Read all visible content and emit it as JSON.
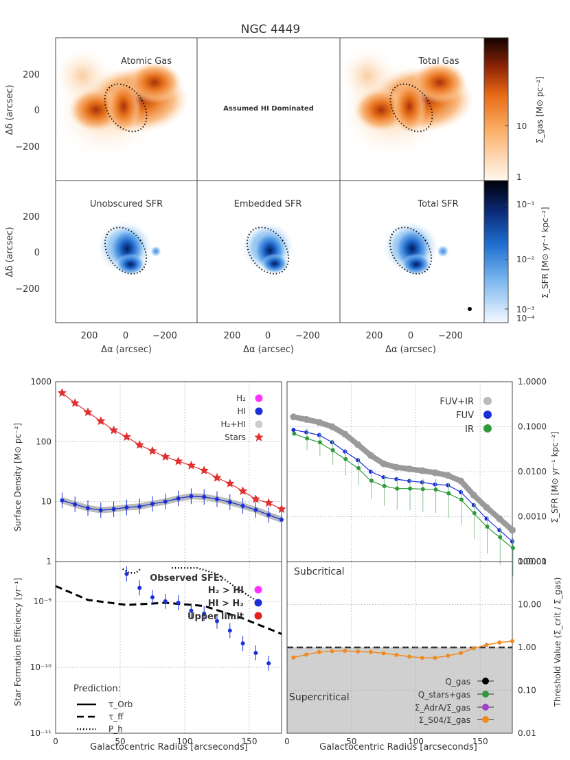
{
  "chart_data": [
    {
      "type": "heatmap",
      "title": "NGC 4449",
      "panels": [
        {
          "label": "Atomic Gas",
          "row": "gas",
          "col": 0
        },
        {
          "label": "Assumed HI Dominated",
          "row": "gas",
          "col": 1
        },
        {
          "label": "Total Gas",
          "row": "gas",
          "col": 2
        },
        {
          "label": "Unobscured SFR",
          "row": "sfr",
          "col": 0
        },
        {
          "label": "Embedded SFR",
          "row": "sfr",
          "col": 1
        },
        {
          "label": "Total SFR",
          "row": "sfr",
          "col": 2
        }
      ],
      "xlabel": "Δα (arcsec)",
      "ylabel": "Δδ (arcsec)",
      "xticks": [
        "200",
        "0",
        "−200"
      ],
      "yticks": [
        "200",
        "0",
        "−200"
      ],
      "gas_colorbar": {
        "label": "Σ_gas [M⊙ pc⁻²]",
        "ticks": [
          "10",
          "1"
        ],
        "range": [
          1,
          60
        ]
      },
      "sfr_colorbar": {
        "label": "Σ_SFR [M⊙ yr⁻¹ kpc⁻²]",
        "ticks": [
          "10⁻¹",
          "10⁻²",
          "10⁻³",
          "10⁻⁴"
        ],
        "range": [
          0.0001,
          0.3
        ]
      },
      "colors": {
        "gas_low": "#fff6ec",
        "gas_mid": "#f58a2e",
        "gas_high": "#3a0b02",
        "sfr_low": "#f2f8ff",
        "sfr_mid": "#2f80d8",
        "sfr_high": "#020620"
      }
    },
    {
      "type": "line",
      "panel": "surface-density",
      "xlabel": "",
      "ylabel": "Surface Density [M⊙ pc⁻²]",
      "xlim": [
        0,
        175
      ],
      "ylim": [
        1,
        1000
      ],
      "yscale": "log",
      "yticks": [
        "1",
        "10",
        "100",
        "1000"
      ],
      "legend": [
        "H₂",
        "HI",
        "H₂+HI",
        "Stars"
      ],
      "legend_colors": [
        "#ff33ff",
        "#1a2fd8",
        "#cccccc",
        "#e03030"
      ],
      "x": [
        5,
        15,
        25,
        35,
        45,
        55,
        65,
        75,
        85,
        95,
        105,
        115,
        125,
        135,
        145,
        155,
        165,
        175
      ],
      "series": [
        {
          "name": "Stars",
          "color": "#e03030",
          "values": [
            650,
            440,
            310,
            220,
            155,
            120,
            88,
            70,
            56,
            47,
            40,
            33,
            25,
            20,
            15,
            11,
            9.5,
            7.5
          ]
        },
        {
          "name": "HI",
          "color": "#1a2fd8",
          "values": [
            10.5,
            9,
            7.8,
            7.2,
            7.5,
            8,
            8.3,
            9.2,
            10,
            11.3,
            12.3,
            12,
            11,
            9.8,
            8.5,
            7.3,
            6,
            5
          ]
        }
      ]
    },
    {
      "type": "line",
      "panel": "sfr-density",
      "ylabel": "Σ_SFR [M⊙ yr⁻¹ kpc⁻²]",
      "xlim": [
        0,
        175
      ],
      "ylim": [
        0.0001,
        1.0
      ],
      "yscale": "log",
      "yticks": [
        "0.0001",
        "0.0010",
        "0.0100",
        "0.1000",
        "1.0000"
      ],
      "legend": [
        "FUV+IR",
        "FUV",
        "IR"
      ],
      "legend_colors": [
        "#bbbbbb",
        "#1a2fd8",
        "#2e9a3a"
      ],
      "x": [
        5,
        15,
        25,
        35,
        45,
        55,
        65,
        75,
        85,
        95,
        105,
        115,
        125,
        135,
        145,
        155,
        165,
        175
      ],
      "series": [
        {
          "name": "FUV+IR",
          "color": "#999999",
          "values": [
            0.165,
            0.145,
            0.125,
            0.1,
            0.068,
            0.04,
            0.023,
            0.015,
            0.0125,
            0.0115,
            0.0105,
            0.0095,
            0.0082,
            0.0062,
            0.003,
            0.0016,
            0.0009,
            0.0005
          ]
        },
        {
          "name": "FUV",
          "color": "#1a2fd8",
          "values": [
            0.085,
            0.075,
            0.065,
            0.045,
            0.028,
            0.018,
            0.01,
            0.0075,
            0.0068,
            0.0062,
            0.0058,
            0.0052,
            0.005,
            0.0035,
            0.0018,
            0.0009,
            0.0005,
            0.00028
          ]
        },
        {
          "name": "IR",
          "color": "#2e9a3a",
          "values": [
            0.07,
            0.055,
            0.045,
            0.03,
            0.019,
            0.012,
            0.0063,
            0.0048,
            0.0042,
            0.0042,
            0.0041,
            0.004,
            0.0033,
            0.0024,
            0.0012,
            0.0006,
            0.00035,
            0.0002
          ]
        }
      ]
    },
    {
      "type": "scatter",
      "panel": "star-formation-efficiency",
      "xlabel": "Galactocentric Radius [arcseconds]",
      "ylabel": "Star Formation Efficiency [yr⁻¹]",
      "xlim": [
        0,
        175
      ],
      "ylim": [
        1e-11,
        4e-09
      ],
      "yscale": "log",
      "yticks": [
        "10⁻¹¹",
        "10⁻¹⁰",
        "10⁻⁹"
      ],
      "xticks": [
        "0",
        "50",
        "100",
        "150"
      ],
      "legend_title": "Observed SFE:",
      "legend": [
        "H₂ > HI",
        "HI > H₂",
        "Upper limit"
      ],
      "legend_colors": [
        "#ff33ff",
        "#1a2fd8",
        "#e02020"
      ],
      "prediction_title": "Prediction:",
      "prediction_labels": [
        "τ_Orb",
        "τ_ff",
        "P_h"
      ],
      "x": [
        55,
        65,
        75,
        85,
        95,
        105,
        115,
        125,
        135,
        145,
        155,
        165
      ],
      "series": [
        {
          "name": "HI > H₂",
          "color": "#1a2fd8",
          "values": [
            2.6e-09,
            1.6e-09,
            1.15e-09,
            1e-09,
            9.5e-10,
            7.2e-10,
            6.5e-10,
            5e-10,
            3.6e-10,
            2.3e-10,
            1.65e-10,
            1.15e-10
          ]
        },
        {
          "name": "τ_ff",
          "color": "#000000",
          "x": [
            0,
            25,
            55,
            85,
            115,
            145,
            175
          ],
          "values": [
            1.7e-09,
            1.05e-09,
            8.8e-10,
            9.5e-10,
            8.5e-10,
            5.5e-10,
            3.2e-10
          ]
        },
        {
          "name": "P_h",
          "color": "#000000",
          "x": [
            52,
            57,
            62,
            66
          ],
          "values": [
            3.1e-09,
            2.7e-09,
            2.7e-09,
            3.1e-09
          ]
        },
        {
          "name": "P_h",
          "color": "#000000",
          "x": [
            90,
            110,
            125,
            140,
            160
          ],
          "values": [
            3.2e-09,
            3.2e-09,
            2.6e-09,
            1.6e-09,
            9e-10
          ]
        }
      ]
    },
    {
      "type": "line",
      "panel": "threshold",
      "xlabel": "Galactocentric Radius [arcseconds]",
      "ylabel": "Threshold Value (Σ_crit / Σ_gas)",
      "xlim": [
        0,
        175
      ],
      "ylim": [
        0.01,
        100
      ],
      "yscale": "log",
      "yticks": [
        "0.01",
        "0.10",
        "1.00",
        "10.00",
        "100.00"
      ],
      "xticks": [
        "0",
        "50",
        "100",
        "150"
      ],
      "annotations": [
        "Subcritical",
        "Supercritical"
      ],
      "threshold": 1.0,
      "legend": [
        "Q_gas",
        "Q_stars+gas",
        "Σ_AdrA/Σ_gas",
        "Σ_S04/Σ_gas"
      ],
      "legend_colors": [
        "#000000",
        "#2e9a3a",
        "#a040c8",
        "#f08a20"
      ],
      "x": [
        5,
        15,
        25,
        35,
        45,
        55,
        65,
        75,
        85,
        95,
        105,
        115,
        125,
        135,
        145,
        155,
        165,
        175
      ],
      "series": [
        {
          "name": "Σ_S04/Σ_gas",
          "color": "#f08a20",
          "values": [
            0.58,
            0.68,
            0.78,
            0.82,
            0.83,
            0.8,
            0.78,
            0.73,
            0.67,
            0.61,
            0.57,
            0.57,
            0.64,
            0.74,
            0.95,
            1.15,
            1.3,
            1.4
          ]
        }
      ]
    }
  ]
}
